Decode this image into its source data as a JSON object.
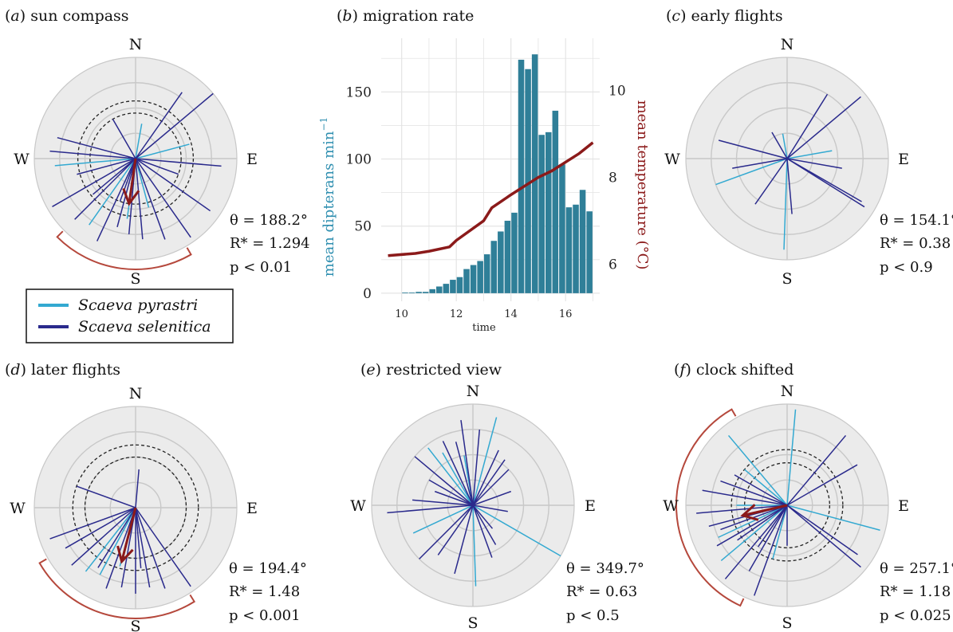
{
  "colors": {
    "pyrastri": "#33a9d1",
    "selenitica": "#2a2a8c",
    "mean": "#8b1a1a",
    "arc": "#b5483c",
    "bar": "#2f7f98",
    "temp": "#8b1a1a",
    "ylabel_left": "#2f8fb0"
  },
  "legend": {
    "items": [
      {
        "label": "Scaeva pyrastri",
        "color_key": "pyrastri"
      },
      {
        "label": "Scaeva selenitica",
        "color_key": "selenitica"
      }
    ]
  },
  "chart_data": [
    {
      "type": "circular",
      "panel": "(a)",
      "title_letter": "a",
      "title": "sun compass",
      "cardinals": [
        "N",
        "E",
        "S",
        "W"
      ],
      "stats": {
        "theta": "θ = 188.2°",
        "rstar": "R* = 1.294",
        "p": "p < 0.01"
      },
      "significance_circles": [
        0.45,
        0.57
      ],
      "mean_vector": {
        "angle": 188.2,
        "length": 0.45
      },
      "ci_arc": [
        150,
        225
      ],
      "tracks": [
        {
          "angle": 10,
          "length": 0.35,
          "species": "pyrastri"
        },
        {
          "angle": 75,
          "length": 0.55,
          "species": "pyrastri"
        },
        {
          "angle": 265,
          "length": 0.8,
          "species": "pyrastri"
        },
        {
          "angle": 215,
          "length": 0.8,
          "species": "pyrastri"
        },
        {
          "angle": 188,
          "length": 0.6,
          "species": "pyrastri"
        },
        {
          "angle": 165,
          "length": 0.5,
          "species": "pyrastri"
        },
        {
          "angle": 50,
          "length": 1.0,
          "species": "selenitica"
        },
        {
          "angle": 35,
          "length": 0.8,
          "species": "selenitica"
        },
        {
          "angle": 95,
          "length": 0.85,
          "species": "selenitica"
        },
        {
          "angle": 125,
          "length": 0.9,
          "species": "selenitica"
        },
        {
          "angle": 145,
          "length": 0.95,
          "species": "selenitica"
        },
        {
          "angle": 160,
          "length": 0.85,
          "species": "selenitica"
        },
        {
          "angle": 175,
          "length": 0.8,
          "species": "selenitica"
        },
        {
          "angle": 185,
          "length": 0.75,
          "species": "selenitica"
        },
        {
          "angle": 195,
          "length": 0.7,
          "species": "selenitica"
        },
        {
          "angle": 205,
          "length": 0.9,
          "species": "selenitica"
        },
        {
          "angle": 225,
          "length": 0.85,
          "species": "selenitica"
        },
        {
          "angle": 240,
          "length": 0.95,
          "species": "selenitica"
        },
        {
          "angle": 255,
          "length": 0.6,
          "species": "selenitica"
        },
        {
          "angle": 275,
          "length": 0.85,
          "species": "selenitica"
        },
        {
          "angle": 285,
          "length": 0.8,
          "species": "selenitica"
        },
        {
          "angle": 230,
          "length": 0.55,
          "species": "selenitica"
        },
        {
          "angle": 200,
          "length": 0.45,
          "species": "selenitica"
        },
        {
          "angle": 110,
          "length": 0.45,
          "species": "selenitica"
        },
        {
          "angle": 330,
          "length": 0.45,
          "species": "selenitica"
        }
      ]
    },
    {
      "type": "bar+line",
      "panel": "(b)",
      "title_letter": "b",
      "title": "migration rate",
      "xlabel": "time",
      "ylabel_left": "mean dipterans min",
      "ylabel_left_sup": "−1",
      "ylabel_right": "mean temperature (°C)",
      "x_ticks": [
        10,
        12,
        14,
        16
      ],
      "y_left_ticks": [
        0,
        50,
        100,
        150
      ],
      "y_right_ticks": [
        6,
        8,
        10
      ],
      "xlim": [
        9.25,
        17.25
      ],
      "ylim_left": [
        -6,
        190
      ],
      "ylim_right": [
        5.15,
        11.2
      ],
      "bars": {
        "x": [
          10.125,
          10.375,
          10.625,
          10.875,
          11.125,
          11.375,
          11.625,
          11.875,
          12.125,
          12.375,
          12.625,
          12.875,
          13.125,
          13.375,
          13.625,
          13.875,
          14.125,
          14.375,
          14.625,
          14.875,
          15.125,
          15.375,
          15.625,
          15.875,
          16.125,
          16.375,
          16.625,
          16.875
        ],
        "values": [
          0.5,
          0.5,
          1,
          1,
          3,
          5,
          7,
          10,
          12,
          18,
          21,
          24,
          29,
          39,
          46,
          54,
          60,
          174,
          167,
          178,
          118,
          120,
          136,
          96,
          64,
          66,
          77,
          61
        ],
        "bar_width": 0.22
      },
      "temperature": {
        "x": [
          9.5,
          10.5,
          11.0,
          11.75,
          12.0,
          13.0,
          13.3,
          14.0,
          14.5,
          15.0,
          15.5,
          16.0,
          16.5,
          17.0
        ],
        "values": [
          6.2,
          6.25,
          6.3,
          6.4,
          6.55,
          7.0,
          7.3,
          7.6,
          7.8,
          8.0,
          8.15,
          8.35,
          8.55,
          8.8
        ]
      }
    },
    {
      "type": "circular",
      "panel": "(c)",
      "title_letter": "c",
      "title": "early flights",
      "cardinals": [
        "N",
        "E",
        "S",
        "W"
      ],
      "stats": {
        "theta": "θ = 154.1°",
        "rstar": "R* = 0.38",
        "p": "p < 0.9"
      },
      "significance_circles": [],
      "mean_vector": null,
      "ci_arc": null,
      "tracks": [
        {
          "angle": 80,
          "length": 0.45,
          "species": "pyrastri"
        },
        {
          "angle": 250,
          "length": 0.75,
          "species": "pyrastri"
        },
        {
          "angle": 182,
          "length": 0.9,
          "species": "pyrastri"
        },
        {
          "angle": 350,
          "length": 0.25,
          "species": "pyrastri"
        },
        {
          "angle": 32,
          "length": 0.75,
          "species": "selenitica"
        },
        {
          "angle": 50,
          "length": 0.95,
          "species": "selenitica"
        },
        {
          "angle": 122,
          "length": 0.9,
          "species": "selenitica"
        },
        {
          "angle": 120,
          "length": 0.85,
          "species": "selenitica"
        },
        {
          "angle": 100,
          "length": 0.55,
          "species": "selenitica"
        },
        {
          "angle": 285,
          "length": 0.7,
          "species": "selenitica"
        },
        {
          "angle": 260,
          "length": 0.55,
          "species": "selenitica"
        },
        {
          "angle": 175,
          "length": 0.55,
          "species": "selenitica"
        },
        {
          "angle": 215,
          "length": 0.55,
          "species": "selenitica"
        },
        {
          "angle": 330,
          "length": 0.3,
          "species": "selenitica"
        }
      ]
    },
    {
      "type": "circular",
      "panel": "(d)",
      "title_letter": "d",
      "title": "later flights",
      "cardinals": [
        "N",
        "E",
        "S",
        "W"
      ],
      "stats": {
        "theta": "θ = 194.4°",
        "rstar": "R* = 1.48",
        "p": "p < 0.001"
      },
      "significance_circles": [
        0.5,
        0.62
      ],
      "mean_vector": {
        "angle": 194.4,
        "length": 0.55
      },
      "ci_arc": [
        148,
        240
      ],
      "tracks": [
        {
          "angle": 208,
          "length": 0.75,
          "species": "pyrastri"
        },
        {
          "angle": 218,
          "length": 0.8,
          "species": "pyrastri"
        },
        {
          "angle": 195,
          "length": 0.6,
          "species": "pyrastri"
        },
        {
          "angle": 5,
          "length": 0.38,
          "species": "selenitica"
        },
        {
          "angle": 145,
          "length": 0.95,
          "species": "selenitica"
        },
        {
          "angle": 160,
          "length": 0.85,
          "species": "selenitica"
        },
        {
          "angle": 170,
          "length": 0.8,
          "species": "selenitica"
        },
        {
          "angle": 180,
          "length": 0.85,
          "species": "selenitica"
        },
        {
          "angle": 190,
          "length": 0.8,
          "species": "selenitica"
        },
        {
          "angle": 200,
          "length": 0.85,
          "species": "selenitica"
        },
        {
          "angle": 212,
          "length": 0.7,
          "species": "selenitica"
        },
        {
          "angle": 228,
          "length": 0.85,
          "species": "selenitica"
        },
        {
          "angle": 240,
          "length": 0.8,
          "species": "selenitica"
        },
        {
          "angle": 250,
          "length": 0.9,
          "species": "selenitica"
        },
        {
          "angle": 290,
          "length": 0.62,
          "species": "selenitica"
        },
        {
          "angle": 175,
          "length": 0.6,
          "species": "selenitica"
        }
      ]
    },
    {
      "type": "circular",
      "panel": "(e)",
      "title_letter": "e",
      "title": "restricted view",
      "cardinals": [
        "N",
        "E",
        "S",
        "W"
      ],
      "stats": {
        "theta": "θ = 349.7°",
        "rstar": "R* = 0.63",
        "p": "p < 0.5"
      },
      "significance_circles": [],
      "mean_vector": null,
      "ci_arc": null,
      "tracks": [
        {
          "angle": 15,
          "length": 0.9,
          "species": "pyrastri"
        },
        {
          "angle": 330,
          "length": 0.6,
          "species": "pyrastri"
        },
        {
          "angle": 322,
          "length": 0.72,
          "species": "pyrastri"
        },
        {
          "angle": 350,
          "length": 0.5,
          "species": "pyrastri"
        },
        {
          "angle": 120,
          "length": 1.0,
          "species": "pyrastri"
        },
        {
          "angle": 245,
          "length": 0.65,
          "species": "pyrastri"
        },
        {
          "angle": 178,
          "length": 0.8,
          "species": "pyrastri"
        },
        {
          "angle": 352,
          "length": 0.85,
          "species": "selenitica"
        },
        {
          "angle": 335,
          "length": 0.7,
          "species": "selenitica"
        },
        {
          "angle": 345,
          "length": 0.65,
          "species": "selenitica"
        },
        {
          "angle": 5,
          "length": 0.75,
          "species": "selenitica"
        },
        {
          "angle": 25,
          "length": 0.6,
          "species": "selenitica"
        },
        {
          "angle": 35,
          "length": 0.55,
          "species": "selenitica"
        },
        {
          "angle": 310,
          "length": 0.75,
          "species": "selenitica"
        },
        {
          "angle": 300,
          "length": 0.5,
          "species": "selenitica"
        },
        {
          "angle": 290,
          "length": 0.4,
          "species": "selenitica"
        },
        {
          "angle": 265,
          "length": 0.85,
          "species": "selenitica"
        },
        {
          "angle": 275,
          "length": 0.6,
          "species": "selenitica"
        },
        {
          "angle": 225,
          "length": 0.75,
          "species": "selenitica"
        },
        {
          "angle": 215,
          "length": 0.6,
          "species": "selenitica"
        },
        {
          "angle": 195,
          "length": 0.7,
          "species": "selenitica"
        },
        {
          "angle": 160,
          "length": 0.55,
          "species": "selenitica"
        },
        {
          "angle": 150,
          "length": 0.45,
          "species": "selenitica"
        },
        {
          "angle": 70,
          "length": 0.4,
          "species": "selenitica"
        },
        {
          "angle": 45,
          "length": 0.5,
          "species": "selenitica"
        },
        {
          "angle": 100,
          "length": 0.35,
          "species": "selenitica"
        },
        {
          "angle": 140,
          "length": 0.3,
          "species": "selenitica"
        }
      ]
    },
    {
      "type": "circular",
      "panel": "(f)",
      "title_letter": "f",
      "title": "clock shifted",
      "cardinals": [
        "N",
        "E",
        "S",
        "W"
      ],
      "stats": {
        "theta": "θ = 257.1°",
        "rstar": "R* = 1.18",
        "p": "p < 0.025"
      },
      "significance_circles": [
        0.42,
        0.55
      ],
      "mean_vector": {
        "angle": 257.1,
        "length": 0.45
      },
      "ci_arc": [
        205,
        330
      ],
      "tracks": [
        {
          "angle": 320,
          "length": 0.9,
          "species": "pyrastri"
        },
        {
          "angle": 310,
          "length": 0.55,
          "species": "pyrastri"
        },
        {
          "angle": 5,
          "length": 0.95,
          "species": "pyrastri"
        },
        {
          "angle": 105,
          "length": 0.95,
          "species": "pyrastri"
        },
        {
          "angle": 245,
          "length": 0.75,
          "species": "pyrastri"
        },
        {
          "angle": 230,
          "length": 0.85,
          "species": "pyrastri"
        },
        {
          "angle": 270,
          "length": 0.5,
          "species": "pyrastri"
        },
        {
          "angle": 195,
          "length": 0.55,
          "species": "pyrastri"
        },
        {
          "angle": 40,
          "length": 0.9,
          "species": "selenitica"
        },
        {
          "angle": 60,
          "length": 0.8,
          "species": "selenitica"
        },
        {
          "angle": 130,
          "length": 0.95,
          "species": "selenitica"
        },
        {
          "angle": 125,
          "length": 0.85,
          "species": "selenitica"
        },
        {
          "angle": 280,
          "length": 0.85,
          "species": "selenitica"
        },
        {
          "angle": 265,
          "length": 0.9,
          "species": "selenitica"
        },
        {
          "angle": 255,
          "length": 0.8,
          "species": "selenitica"
        },
        {
          "angle": 250,
          "length": 0.7,
          "species": "selenitica"
        },
        {
          "angle": 240,
          "length": 0.8,
          "species": "selenitica"
        },
        {
          "angle": 220,
          "length": 0.95,
          "species": "selenitica"
        },
        {
          "angle": 210,
          "length": 0.75,
          "species": "selenitica"
        },
        {
          "angle": 200,
          "length": 0.95,
          "species": "selenitica"
        },
        {
          "angle": 290,
          "length": 0.7,
          "species": "selenitica"
        },
        {
          "angle": 300,
          "length": 0.6,
          "species": "selenitica"
        },
        {
          "angle": 235,
          "length": 0.6,
          "species": "selenitica"
        },
        {
          "angle": 215,
          "length": 0.5,
          "species": "selenitica"
        },
        {
          "angle": 180,
          "length": 0.4,
          "species": "selenitica"
        }
      ]
    }
  ]
}
